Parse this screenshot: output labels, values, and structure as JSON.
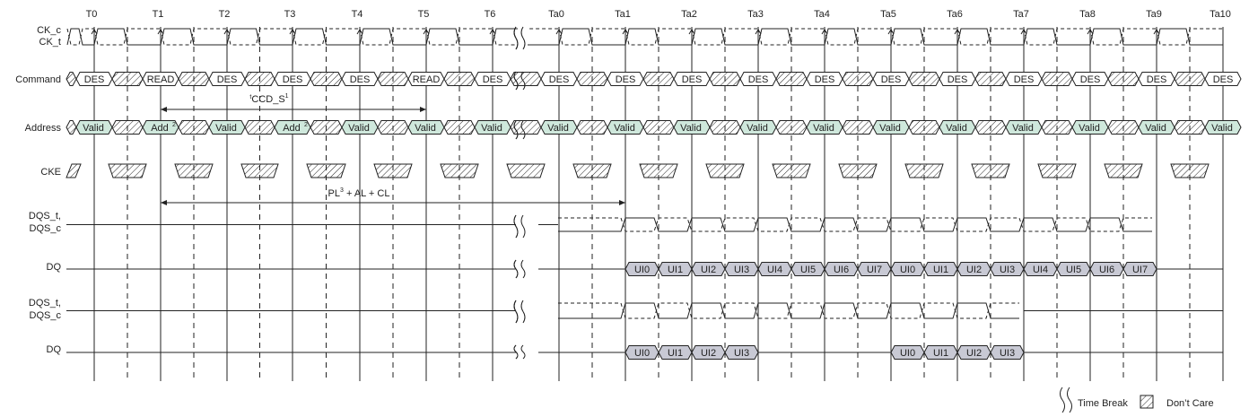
{
  "time_labels": [
    "T0",
    "T1",
    "T2",
    "T3",
    "T4",
    "T5",
    "T6",
    "Ta0",
    "Ta1",
    "Ta2",
    "Ta3",
    "Ta4",
    "Ta5",
    "Ta6",
    "Ta7",
    "Ta8",
    "Ta9",
    "Ta10"
  ],
  "signals": {
    "ck_c": "CK_c",
    "ck_t": "CK_t",
    "command": "Command",
    "address": "Address",
    "cke": "CKE",
    "dqs1_a": "DQS_t,",
    "dqs1_b": "DQS_c",
    "dq1": "DQ",
    "dqs2_a": "DQS_t,",
    "dqs2_b": "DQS_c",
    "dq2": "DQ"
  },
  "command_cells": [
    "DES",
    "READ",
    "DES",
    "DES",
    "DES",
    "READ",
    "DES",
    "DES",
    "DES",
    "DES",
    "DES",
    "DES",
    "DES",
    "DES",
    "DES",
    "DES",
    "DES",
    "DES"
  ],
  "address_cells": [
    "Valid",
    "Add",
    "Valid",
    "Add",
    "Valid",
    "Valid",
    "Valid",
    "Valid",
    "Valid",
    "Valid",
    "Valid",
    "Valid",
    "Valid",
    "Valid",
    "Valid",
    "Valid",
    "Valid",
    "Valid"
  ],
  "address_superscripts": [
    "",
    "2",
    "",
    "2",
    "",
    "",
    "",
    "",
    "",
    "",
    "",
    "",
    "",
    "",
    "",
    "",
    "",
    ""
  ],
  "dq1_cells": [
    "UI0",
    "UI1",
    "UI2",
    "UI3",
    "UI4",
    "UI5",
    "UI6",
    "UI7",
    "UI0",
    "UI1",
    "UI2",
    "UI3",
    "UI4",
    "UI5",
    "UI6",
    "UI7"
  ],
  "dq2_cells_a": [
    "UI0",
    "UI1",
    "UI2",
    "UI3"
  ],
  "dq2_cells_b": [
    "UI0",
    "UI1",
    "UI2",
    "UI3"
  ],
  "annotations": {
    "tccd_prefix": "t",
    "tccd_main": "CCD_S",
    "tccd_sup": "1",
    "pl_prefix": "PL",
    "pl_sup": "3",
    "pl_suffix": " + AL + CL"
  },
  "legend": {
    "time_break": "Time Break",
    "dont_care": "Don’t Care"
  },
  "colors": {
    "valid_fill": "#cfe8dc",
    "dq_fill": "#c8c9d4",
    "line": "#222222"
  }
}
